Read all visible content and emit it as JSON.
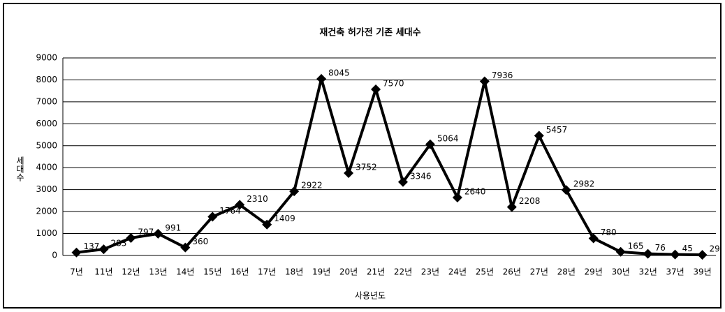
{
  "chart_data": {
    "type": "line",
    "title": "재건축 허가전 기존 세대수",
    "x_label": "사용년도",
    "y_label": "세대수",
    "categories": [
      "7년",
      "11년",
      "12년",
      "13년",
      "14년",
      "15년",
      "16년",
      "17년",
      "18년",
      "19년",
      "20년",
      "21년",
      "22년",
      "23년",
      "24년",
      "25년",
      "26년",
      "27년",
      "28년",
      "29년",
      "30년",
      "32년",
      "37년",
      "39년"
    ],
    "series": [
      {
        "name": "세대수",
        "color": "#000000",
        "values": [
          137,
          283,
          797,
          991,
          360,
          1764,
          2310,
          1409,
          2922,
          8045,
          3752,
          7570,
          3346,
          5064,
          2640,
          7936,
          2208,
          5457,
          2982,
          780,
          165,
          76,
          45,
          29
        ]
      }
    ],
    "ylim": [
      0,
      9000
    ],
    "yticks": [
      0,
      1000,
      2000,
      3000,
      4000,
      5000,
      6000,
      7000,
      8000,
      9000
    ],
    "grid": true
  }
}
